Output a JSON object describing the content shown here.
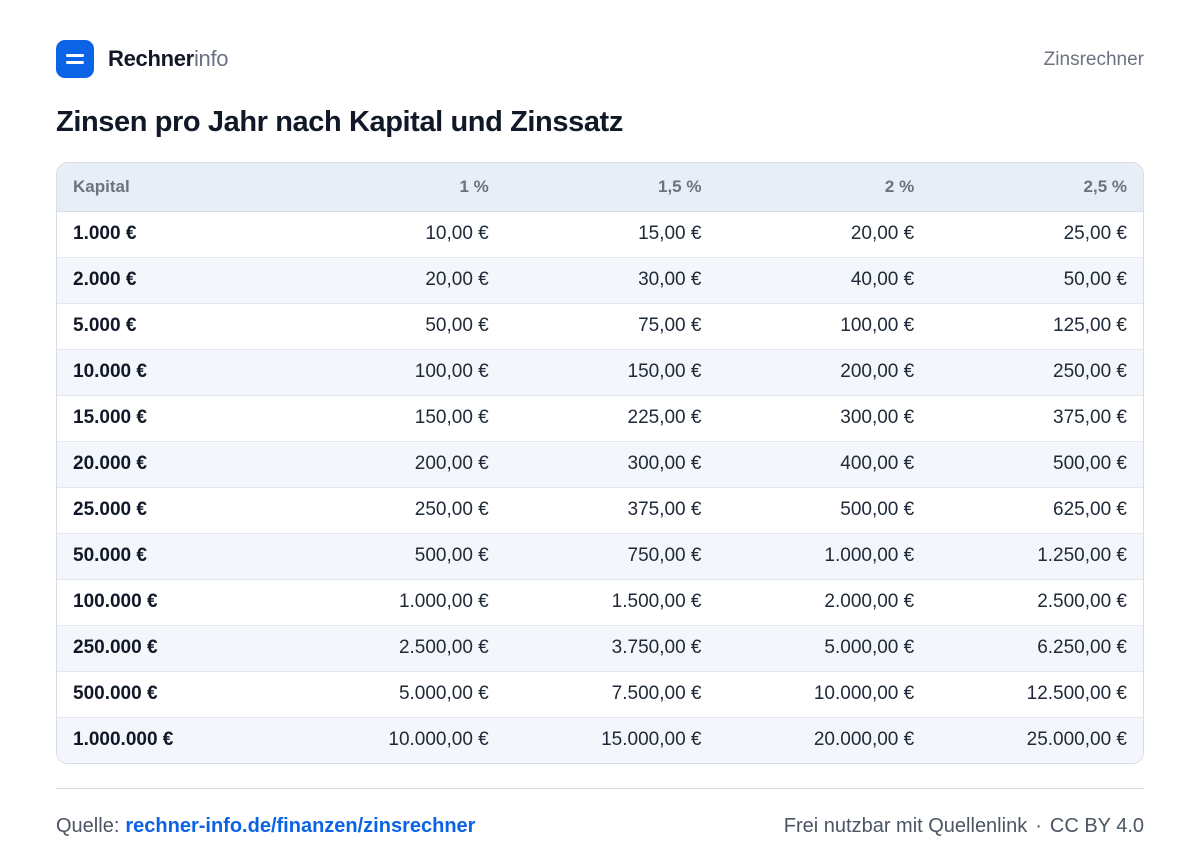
{
  "header": {
    "logo_bold": "Rechner",
    "logo_light": "info",
    "nav_label": "Zinsrechner"
  },
  "page_title": "Zinsen pro Jahr nach Kapital und Zinssatz",
  "table": {
    "headers": [
      "Kapital",
      "1 %",
      "1,5 %",
      "2 %",
      "2,5 %"
    ],
    "rows": [
      [
        "1.000 €",
        "10,00 €",
        "15,00 €",
        "20,00 €",
        "25,00 €"
      ],
      [
        "2.000 €",
        "20,00 €",
        "30,00 €",
        "40,00 €",
        "50,00 €"
      ],
      [
        "5.000 €",
        "50,00 €",
        "75,00 €",
        "100,00 €",
        "125,00 €"
      ],
      [
        "10.000 €",
        "100,00 €",
        "150,00 €",
        "200,00 €",
        "250,00 €"
      ],
      [
        "15.000 €",
        "150,00 €",
        "225,00 €",
        "300,00 €",
        "375,00 €"
      ],
      [
        "20.000 €",
        "200,00 €",
        "300,00 €",
        "400,00 €",
        "500,00 €"
      ],
      [
        "25.000 €",
        "250,00 €",
        "375,00 €",
        "500,00 €",
        "625,00 €"
      ],
      [
        "50.000 €",
        "500,00 €",
        "750,00 €",
        "1.000,00 €",
        "1.250,00 €"
      ],
      [
        "100.000 €",
        "1.000,00 €",
        "1.500,00 €",
        "2.000,00 €",
        "2.500,00 €"
      ],
      [
        "250.000 €",
        "2.500,00 €",
        "3.750,00 €",
        "5.000,00 €",
        "6.250,00 €"
      ],
      [
        "500.000 €",
        "5.000,00 €",
        "7.500,00 €",
        "10.000,00 €",
        "12.500,00 €"
      ],
      [
        "1.000.000 €",
        "10.000,00 €",
        "15.000,00 €",
        "20.000,00 €",
        "25.000,00 €"
      ]
    ]
  },
  "footer": {
    "source_label": "Quelle:",
    "source_link": "rechner-info.de/finanzen/zinsrechner",
    "usage_note": "Frei nutzbar mit Quellenlink",
    "separator": "·",
    "license": "CC BY 4.0"
  },
  "colors": {
    "accent": "#0b63e5",
    "header_row_bg": "#e8eef6",
    "stripe_bg": "#f3f6fa"
  }
}
